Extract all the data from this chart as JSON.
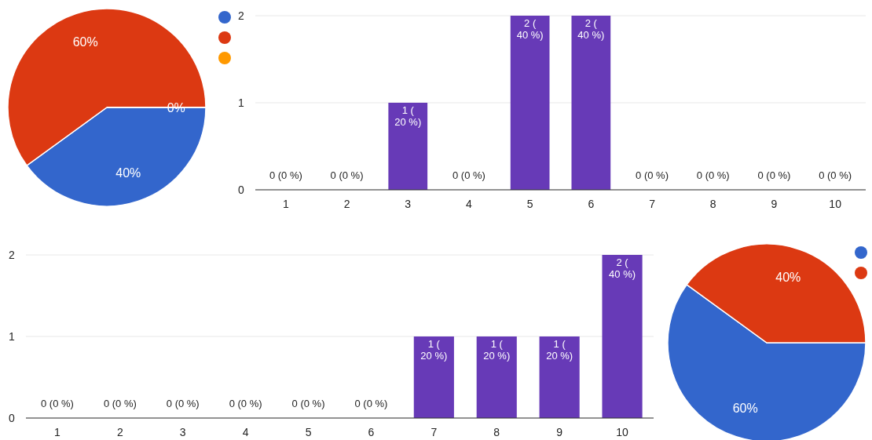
{
  "chart_data": [
    {
      "type": "pie",
      "categories": [
        null,
        null,
        null
      ],
      "values": [
        40,
        60,
        0
      ],
      "colors": [
        "#3366cc",
        "#dc3912",
        "#ff9900"
      ],
      "value_labels": [
        "40%",
        "60%",
        "0%"
      ]
    },
    {
      "type": "bar",
      "categories": [
        "1",
        "2",
        "3",
        "4",
        "5",
        "6",
        "7",
        "8",
        "9",
        "10"
      ],
      "values": [
        0,
        0,
        1,
        0,
        2,
        2,
        0,
        0,
        0,
        0
      ],
      "color": "#673ab7",
      "value_labels": [
        "0 (0 %)",
        "0 (0 %)",
        "1 (20 %)",
        "0 (0 %)",
        "2 (40 %)",
        "2 (40 %)",
        "0 (0 %)",
        "0 (0 %)",
        "0 (0 %)",
        "0 (0 %)"
      ],
      "ylim": [
        0,
        2
      ],
      "yticks": [
        0,
        1,
        2
      ],
      "grid": "y"
    },
    {
      "type": "bar",
      "categories": [
        "1",
        "2",
        "3",
        "4",
        "5",
        "6",
        "7",
        "8",
        "9",
        "10"
      ],
      "values": [
        0,
        0,
        0,
        0,
        0,
        0,
        1,
        1,
        1,
        2
      ],
      "color": "#673ab7",
      "value_labels": [
        "0 (0 %)",
        "0 (0 %)",
        "0 (0 %)",
        "0 (0 %)",
        "0 (0 %)",
        "0 (0 %)",
        "1 (20 %)",
        "1 (20 %)",
        "1 (20 %)",
        "2 (40 %)"
      ],
      "ylim": [
        0,
        2
      ],
      "yticks": [
        0,
        1,
        2
      ],
      "grid": "y"
    },
    {
      "type": "pie",
      "categories": [
        null,
        null
      ],
      "values": [
        60,
        40
      ],
      "colors": [
        "#3366cc",
        "#dc3912"
      ],
      "value_labels": [
        "60%",
        "40%"
      ]
    }
  ]
}
